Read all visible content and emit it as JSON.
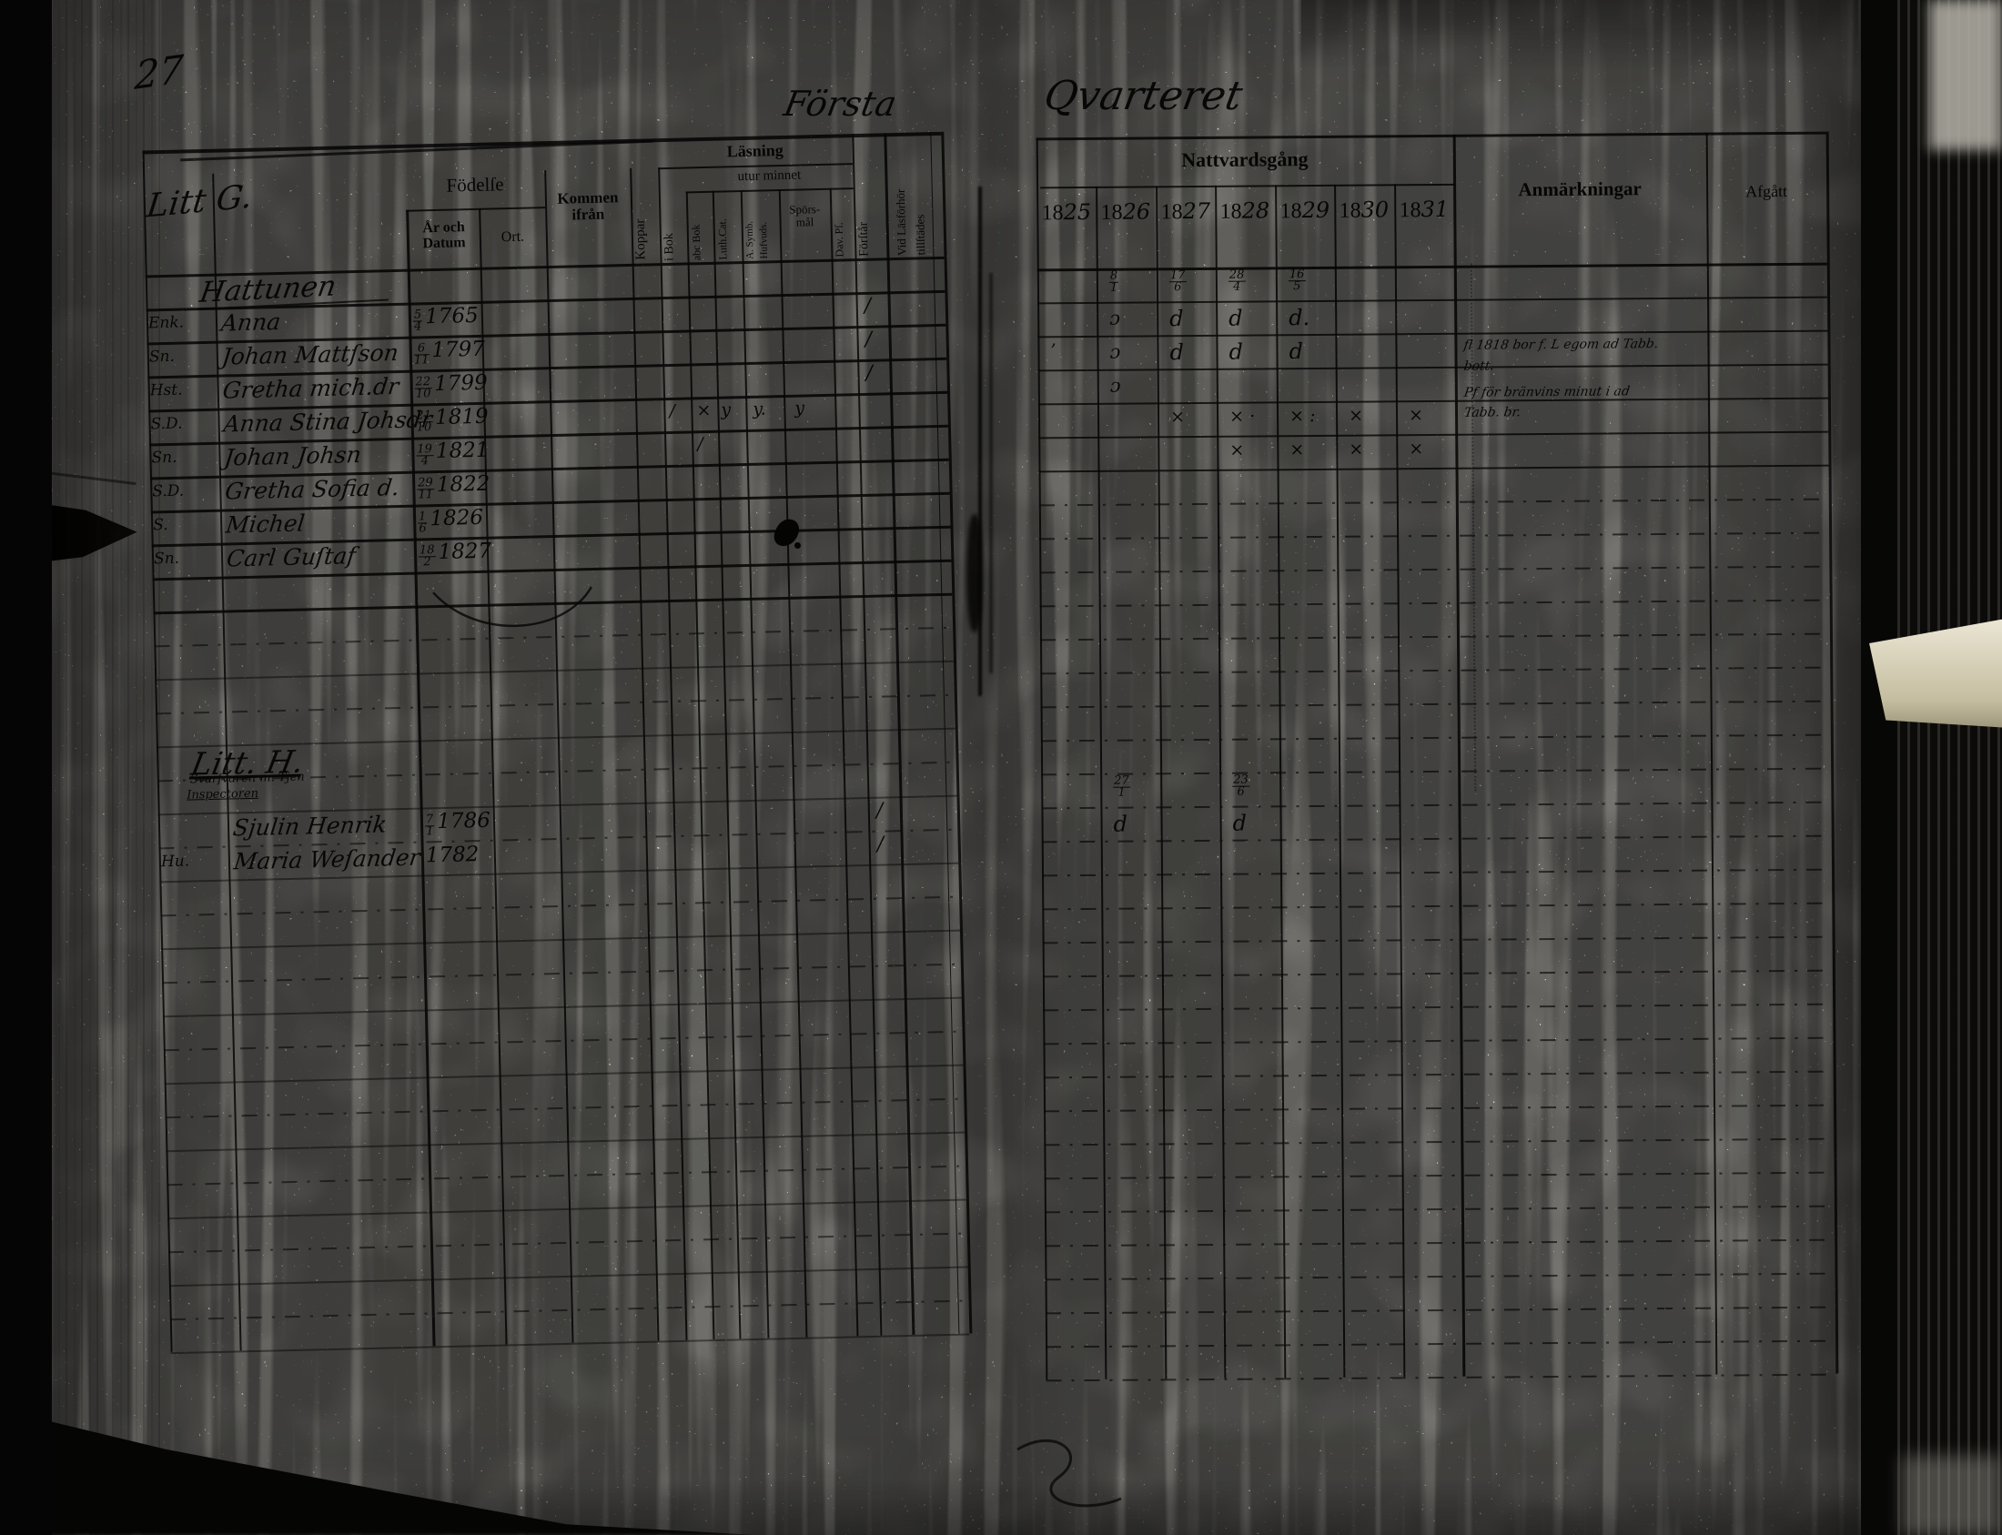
{
  "page_number": "27",
  "spread_title_left": "Första",
  "spread_title_right": "Qvarteret",
  "left_page": {
    "section_g_heading": "Litt G.",
    "header": {
      "fodelse": "Födelſe",
      "ar_och_datum": "År och\nDatum",
      "ort": "Ort.",
      "kommen_ifran": "Kommen\nifrån",
      "koppar": "Koppar",
      "lasning": "Läsning",
      "utur_minnet": "utur minnet",
      "i_bok": "i Bok",
      "abc_bok": "abc Bok",
      "luth_cat": "Luth.Cat.",
      "a_symb": "A. Symb.\nHufvuds.",
      "sporsmal": "Spörs-\nmål",
      "dav_ps": "Dav. Pſ.",
      "forstar": "Förſtår",
      "vid_lasforhor": "Vid Läsförhör\ntillſtädes"
    },
    "rows": [
      {
        "row": 1,
        "kind": "surname",
        "text": "Hattunen"
      },
      {
        "row": 2,
        "kind": "member",
        "rel": "Enk.",
        "name": "Anna",
        "date": "5/4",
        "year": "1765",
        "forstar": "/"
      },
      {
        "row": 3,
        "kind": "member",
        "rel": "Sn.",
        "name": "Johan Mattſson",
        "date": "6/11",
        "year": "1797",
        "forstar": "/"
      },
      {
        "row": 4,
        "kind": "member",
        "rel": "Hst.",
        "name": "Gretha mich.dr",
        "date": "22/10",
        "year": "1799",
        "forstar": "/"
      },
      {
        "row": 5,
        "kind": "member",
        "rel": "S.D.",
        "name": "Anna Stina Johsdr",
        "date": "21/10",
        "year": "1819",
        "reading": {
          "ibok": "/",
          "abc": "×",
          "luth": "y",
          "asymb": "y.",
          "spors": "y"
        }
      },
      {
        "row": 6,
        "kind": "member",
        "rel": "Sn.",
        "name": "Johan Johsn",
        "date": "19/4",
        "year": "1821",
        "reading": {
          "abc": "/"
        }
      },
      {
        "row": 7,
        "kind": "member",
        "rel": "S.D.",
        "name": "Gretha Sofia d.",
        "date": "29/11",
        "year": "1822"
      },
      {
        "row": 8,
        "kind": "member",
        "rel": "S.",
        "name": "Michel",
        "date": "1/6",
        "year": "1826"
      },
      {
        "row": 9,
        "kind": "member",
        "rel": "Sn.",
        "name": "Carl Guſtaf",
        "date": "18/2",
        "year": "1827"
      },
      {
        "row": 15,
        "kind": "heading",
        "text": "Litt. H."
      },
      {
        "row": 16,
        "kind": "note2",
        "line1": "Svarfvaren m. Tjen",
        "line2": "Inspectoren"
      },
      {
        "row": 17,
        "kind": "member",
        "rel": "",
        "name": "Sjulin Henrik",
        "date": "7/1",
        "year": "1786",
        "forstar": "/"
      },
      {
        "row": 18,
        "kind": "member",
        "rel": "Hu.",
        "name": "Maria Weſander",
        "date": "",
        "year": "1782",
        "forstar": "/"
      }
    ]
  },
  "right_page": {
    "nattvardsgang": "Nattvardsgång",
    "years": [
      "1825",
      "1826",
      "1827",
      "1828",
      "1829",
      "1830",
      "1831"
    ],
    "anmarkningar": "Anmärkningar",
    "afgatt": "Afgått",
    "marks": [
      {
        "row": 1,
        "kind": "date",
        "cells": {
          "1": "8/1",
          "2": "17/6",
          "3": "28/4",
          "4": "16/5"
        }
      },
      {
        "row": 2,
        "kind": "mark",
        "cells": {
          "1": "ɔ",
          "2": "d",
          "3": "d",
          "4": "d."
        }
      },
      {
        "row": 3,
        "kind": "mark",
        "cells": {
          "0": "’",
          "1": "ɔ",
          "2": "d",
          "3": "d",
          "4": "d"
        }
      },
      {
        "row": 4,
        "kind": "mark",
        "cells": {
          "1": "ɔ"
        }
      },
      {
        "row": 5,
        "kind": "mark",
        "cells": {
          "2": "×",
          "3": "× ·",
          "4": "× :",
          "5": "×",
          "6": "×"
        }
      },
      {
        "row": 6,
        "kind": "mark",
        "cells": {
          "3": "×",
          "4": "×",
          "5": "×",
          "6": "×"
        }
      },
      {
        "row": 16,
        "kind": "date",
        "cells": {
          "1": "27/1",
          "3": "23/6"
        }
      },
      {
        "row": 17,
        "kind": "mark",
        "cells": {
          "1": "d",
          "3": "d"
        }
      }
    ],
    "notes": [
      {
        "row": 3.2,
        "text": "fl 1818 bor f. L egom ad Tabb."
      },
      {
        "row": 3.8,
        "text": "bott."
      },
      {
        "row": 4.6,
        "text": "Pf för bränvins minut i ad"
      },
      {
        "row": 5.2,
        "text": "Tabb. br."
      }
    ]
  }
}
